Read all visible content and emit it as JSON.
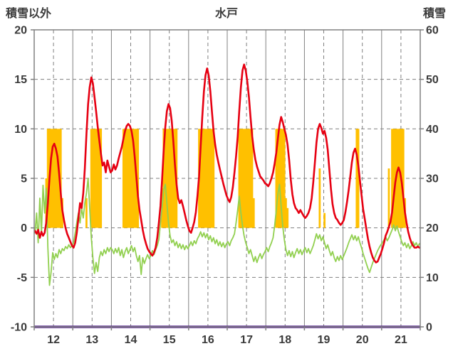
{
  "header": {
    "left_axis_label": "積雪以外",
    "title": "水戸",
    "right_axis_label": "積雪"
  },
  "chart_data": {
    "type": "combo",
    "title": "水戸",
    "x_tick_labels": [
      "12",
      "13",
      "14",
      "15",
      "16",
      "17",
      "18",
      "19",
      "20",
      "21"
    ],
    "samples_per_day": 24,
    "left_axis": {
      "label": "積雪以外",
      "min": -10,
      "max": 20,
      "ticks": [
        20,
        15,
        10,
        5,
        0,
        -5,
        -10
      ]
    },
    "right_axis": {
      "label": "積雪",
      "min": 0,
      "max": 60,
      "ticks": [
        60,
        50,
        40,
        30,
        20,
        10,
        0
      ]
    },
    "grid_color": "#808080",
    "text_color": "#3a3a3a",
    "series": [
      {
        "name": "orange-bars",
        "type": "bar",
        "axis": "left",
        "color": "#FFC000",
        "values_by_day": [
          [
            0,
            0,
            0,
            0,
            0,
            0,
            0,
            5,
            10,
            10,
            10,
            10,
            10,
            10,
            10,
            10,
            10,
            3,
            0,
            0,
            0,
            0,
            0,
            0
          ],
          [
            0,
            0,
            0,
            0,
            0,
            0,
            0,
            0,
            3,
            0,
            0,
            10,
            10,
            10,
            10,
            10,
            10,
            10,
            0,
            0,
            0,
            0,
            0,
            0
          ],
          [
            0,
            0,
            0,
            0,
            0,
            0,
            0,
            10,
            10,
            10,
            10,
            10,
            10,
            10,
            10,
            10,
            10,
            0,
            0,
            0,
            0,
            0,
            0,
            0
          ],
          [
            0,
            0,
            0,
            0,
            0,
            0,
            0,
            4,
            10,
            10,
            10,
            10,
            10,
            10,
            10,
            10,
            10,
            0,
            0,
            0,
            0,
            0,
            0,
            0
          ],
          [
            0,
            0,
            0,
            0,
            0,
            0,
            10,
            10,
            10,
            10,
            10,
            10,
            10,
            10,
            10,
            10,
            0,
            0,
            0,
            0,
            0,
            0,
            0,
            0
          ],
          [
            0,
            0,
            0,
            0,
            0,
            0,
            0,
            10,
            10,
            10,
            10,
            10,
            10,
            10,
            10,
            10,
            3,
            0,
            0,
            0,
            0,
            0,
            0,
            0
          ],
          [
            0,
            0,
            0,
            0,
            0,
            0,
            10,
            10,
            10,
            10,
            10,
            10,
            3,
            2,
            0,
            0,
            0,
            0,
            0,
            0,
            0,
            0,
            0,
            0
          ],
          [
            0,
            0,
            0,
            0,
            0,
            0,
            0,
            0,
            0,
            6,
            0,
            0,
            1.5,
            0,
            0,
            0,
            0,
            0,
            0,
            0,
            0,
            0,
            0,
            0
          ],
          [
            0,
            0,
            0,
            0,
            0,
            0,
            0,
            0,
            10,
            10,
            0,
            0,
            0,
            0,
            0,
            0,
            0,
            0,
            0,
            0,
            0,
            0,
            0,
            0
          ],
          [
            0,
            0,
            0,
            0,
            6,
            0,
            10,
            10,
            10,
            10,
            10,
            10,
            10,
            10,
            3,
            0,
            0,
            0,
            0,
            0,
            0,
            0,
            0,
            0
          ]
        ]
      },
      {
        "name": "green-line",
        "type": "line",
        "axis": "left",
        "color": "#92D050",
        "width": 1.8,
        "values_by_day": [
          [
            -0.5,
            1.5,
            -1.5,
            3.0,
            -0.5,
            4.3,
            1.5,
            4.0,
            -2.0,
            -5.8,
            -4.5,
            -2.5,
            -3.2,
            -2.6,
            -3.0,
            -2.2,
            -2.6,
            -2.1,
            -2.3,
            -1.9,
            -2.1,
            -1.7,
            -2.0,
            -1.8
          ],
          [
            -1.5,
            -0.5,
            0.5,
            1.5,
            0.5,
            2.0,
            1.0,
            2.5,
            3.5,
            5.0,
            2.0,
            -1.0,
            -3.0,
            -4.6,
            -3.5,
            -4.4,
            -3.0,
            -2.4,
            -2.8,
            -2.2,
            -2.6,
            -2.0,
            -2.4,
            -2.0
          ],
          [
            -2.2,
            -2.6,
            -2.1,
            -2.5,
            -2.0,
            -2.8,
            -2.2,
            -3.0,
            -2.4,
            -2.0,
            -2.6,
            -2.2,
            -1.8,
            -2.4,
            -2.0,
            -2.8,
            -3.4,
            -2.8,
            -4.7,
            -3.0,
            -3.6,
            -3.1,
            -2.7,
            -3.1
          ],
          [
            -2.8,
            -2.3,
            -2.7,
            -2.2,
            -1.8,
            -1.2,
            0.5,
            2.0,
            3.8,
            4.4,
            2.5,
            0.5,
            -0.8,
            -1.5,
            -1.2,
            -1.8,
            -1.4,
            -2.0,
            -1.6,
            -2.1,
            -1.7,
            -2.2,
            -1.8,
            -2.1
          ],
          [
            -1.8,
            -1.4,
            -1.8,
            -1.3,
            -1.6,
            -1.1,
            -0.8,
            -0.4,
            -0.9,
            -0.5,
            -1.0,
            -0.6,
            -1.2,
            -0.8,
            -1.4,
            -1.0,
            -1.6,
            -1.2,
            -1.8,
            -1.4,
            -1.9,
            -1.5,
            -2.0,
            -1.6
          ],
          [
            -1.4,
            -1.8,
            -1.3,
            -1.0,
            -0.6,
            0.5,
            1.8,
            3.2,
            1.5,
            0.2,
            -0.8,
            -1.5,
            -2.0,
            -2.6,
            -2.2,
            -2.8,
            -3.4,
            -2.9,
            -3.5,
            -3.0,
            -2.6,
            -3.1,
            -2.7,
            -2.4
          ],
          [
            -2.0,
            -2.4,
            -1.9,
            -1.5,
            -1.0,
            0.2,
            1.8,
            3.4,
            4.4,
            2.2,
            0.2,
            -1.2,
            -2.2,
            -2.8,
            -2.3,
            -2.9,
            -2.4,
            -3.0,
            -2.5,
            -2.1,
            -2.6,
            -2.2,
            -2.7,
            -2.3
          ],
          [
            -2.0,
            -2.5,
            -2.1,
            -2.6,
            -2.2,
            -1.8,
            -1.2,
            -0.6,
            -1.1,
            -0.7,
            -1.3,
            -0.9,
            -1.5,
            -2.1,
            -1.7,
            -2.3,
            -2.8,
            -2.4,
            -3.0,
            -3.4,
            -2.9,
            -3.3,
            -2.8,
            -3.2
          ],
          [
            -2.8,
            -2.4,
            -2.0,
            -1.5,
            -1.1,
            -0.7,
            -1.2,
            -0.8,
            -1.3,
            -0.9,
            -1.5,
            -2.0,
            -2.6,
            -3.1,
            -3.6,
            -4.1,
            -4.5,
            -4.0,
            -3.5,
            -3.1,
            -2.7,
            -2.3,
            -2.0,
            -1.7
          ],
          [
            -1.5,
            -1.2,
            -0.9,
            -1.3,
            -1.0,
            -0.6,
            -0.2,
            0.3,
            -0.3,
            0.2,
            -0.4,
            -0.9,
            -1.4,
            -1.8,
            -1.5,
            -2.0,
            -1.6,
            -2.1,
            -1.8,
            -1.4,
            -1.8,
            -1.5,
            -1.9,
            -1.6
          ]
        ]
      },
      {
        "name": "red-line",
        "type": "line",
        "axis": "left",
        "color": "#E60012",
        "width": 2.6,
        "values_by_day": [
          [
            -0.3,
            -0.6,
            -0.2,
            -1.0,
            -0.4,
            -0.8,
            -0.5,
            0.5,
            2.5,
            5.0,
            7.0,
            8.2,
            8.5,
            8.0,
            7.2,
            5.5,
            3.5,
            1.8,
            0.8,
            0.0,
            -0.6,
            -1.0,
            -1.4,
            -1.8
          ],
          [
            -2.0,
            -1.5,
            -0.5,
            1.0,
            2.5,
            2.0,
            3.5,
            6.0,
            9.5,
            12.5,
            14.2,
            15.2,
            14.6,
            13.2,
            11.8,
            10.2,
            8.8,
            7.5,
            6.3,
            6.6,
            5.6,
            6.8,
            6.2,
            5.6
          ],
          [
            5.8,
            6.4,
            5.9,
            6.3,
            7.0,
            7.6,
            8.2,
            9.0,
            9.8,
            10.3,
            10.5,
            10.3,
            9.8,
            8.8,
            7.2,
            5.2,
            3.2,
            1.8,
            0.8,
            -0.2,
            -1.0,
            -1.6,
            -2.1,
            -2.4
          ],
          [
            -2.6,
            -2.8,
            -2.5,
            -2.0,
            -1.0,
            0.5,
            2.2,
            4.8,
            7.8,
            10.2,
            11.8,
            12.5,
            12.1,
            10.8,
            8.8,
            6.4,
            4.4,
            3.0,
            2.5,
            2.8,
            2.2,
            1.5,
            0.8,
            0.2
          ],
          [
            -0.3,
            -0.5,
            0.0,
            0.6,
            1.6,
            3.2,
            5.2,
            8.2,
            11.2,
            13.8,
            15.4,
            16.1,
            15.4,
            13.8,
            11.8,
            9.8,
            8.4,
            7.4,
            6.6,
            5.9,
            5.2,
            4.5,
            3.9,
            3.3
          ],
          [
            2.9,
            2.6,
            3.1,
            4.1,
            5.6,
            7.2,
            9.2,
            11.8,
            14.2,
            15.9,
            16.5,
            15.9,
            14.8,
            13.2,
            11.2,
            9.3,
            7.9,
            6.9,
            6.2,
            5.7,
            5.2,
            5.0,
            4.8,
            4.5
          ],
          [
            4.4,
            4.2,
            4.5,
            5.0,
            5.6,
            6.5,
            7.6,
            9.0,
            10.4,
            11.2,
            10.7,
            10.0,
            9.4,
            8.4,
            6.9,
            4.9,
            3.4,
            2.5,
            2.0,
            1.8,
            1.5,
            1.8,
            1.5,
            1.2
          ],
          [
            1.0,
            1.2,
            1.5,
            2.0,
            3.0,
            4.6,
            6.6,
            8.6,
            10.0,
            10.5,
            10.1,
            9.5,
            9.8,
            9.1,
            7.9,
            5.9,
            3.9,
            2.4,
            1.5,
            1.0,
            0.8,
            0.5,
            0.3,
            0.5
          ],
          [
            0.8,
            1.6,
            2.6,
            3.8,
            5.2,
            6.6,
            7.6,
            8.0,
            7.4,
            6.3,
            4.8,
            3.3,
            1.9,
            0.9,
            -0.1,
            -1.1,
            -1.9,
            -2.5,
            -3.0,
            -3.3,
            -3.5,
            -3.4,
            -3.0,
            -2.6
          ],
          [
            -2.1,
            -1.5,
            -0.8,
            -0.4,
            0.1,
            0.6,
            1.6,
            3.1,
            4.6,
            5.6,
            6.1,
            5.6,
            4.6,
            3.1,
            1.6,
            0.5,
            -0.4,
            -1.0,
            -1.5,
            -1.8,
            -2.0,
            -2.0,
            -1.9,
            -2.0
          ]
        ]
      },
      {
        "name": "purple-line",
        "type": "line",
        "axis": "right",
        "color": "#5C2D91",
        "width": 3.5,
        "constant_value": 0
      }
    ]
  }
}
